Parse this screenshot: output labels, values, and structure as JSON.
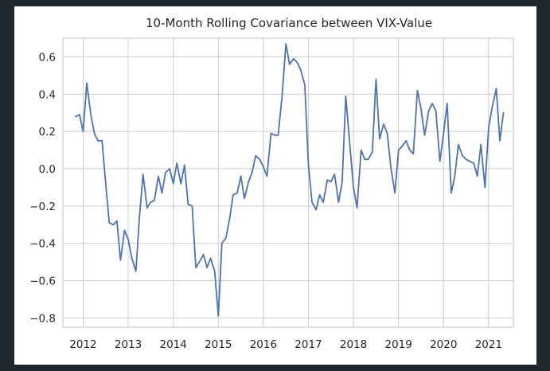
{
  "chart_data": {
    "type": "line",
    "title": "10-Month Rolling Covariance between VIX-Value",
    "xlabel": "",
    "ylabel": "",
    "xlim": [
      2011.55,
      2021.55
    ],
    "ylim": [
      -0.85,
      0.7
    ],
    "grid": true,
    "legend": "none",
    "x_ticks": [
      2012,
      2013,
      2014,
      2015,
      2016,
      2017,
      2018,
      2019,
      2020,
      2021
    ],
    "x_tick_labels": [
      "2012",
      "2013",
      "2014",
      "2015",
      "2016",
      "2017",
      "2018",
      "2019",
      "2020",
      "2021"
    ],
    "y_ticks": [
      0.6,
      0.4,
      0.2,
      0.0,
      -0.2,
      -0.4,
      -0.6,
      -0.8
    ],
    "y_tick_labels": [
      "0.6",
      "0.4",
      "0.2",
      "0.0",
      "−0.2",
      "−0.4",
      "−0.6",
      "−0.8"
    ],
    "colors": {
      "line": "#4c72b0",
      "grid": "#cccccc",
      "background": "#ffffff",
      "page": "#1f2731"
    },
    "series": [
      {
        "x": [
          2011.83,
          2011.92,
          2012.0,
          2012.08,
          2012.17,
          2012.25,
          2012.33,
          2012.42,
          2012.5,
          2012.58,
          2012.67,
          2012.75,
          2012.83,
          2012.92,
          2013.0,
          2013.08,
          2013.17,
          2013.25,
          2013.33,
          2013.42,
          2013.5,
          2013.58,
          2013.67,
          2013.75,
          2013.83,
          2013.92,
          2014.0,
          2014.08,
          2014.17,
          2014.25,
          2014.33,
          2014.42,
          2014.5,
          2014.58,
          2014.67,
          2014.75,
          2014.83,
          2014.92,
          2015.0,
          2015.08,
          2015.17,
          2015.25,
          2015.33,
          2015.42,
          2015.5,
          2015.58,
          2015.67,
          2015.75,
          2015.83,
          2015.92,
          2016.0,
          2016.08,
          2016.17,
          2016.25,
          2016.33,
          2016.42,
          2016.5,
          2016.58,
          2016.67,
          2016.75,
          2016.83,
          2016.92,
          2017.0,
          2017.08,
          2017.17,
          2017.25,
          2017.33,
          2017.42,
          2017.5,
          2017.58,
          2017.67,
          2017.75,
          2017.83,
          2017.92,
          2018.0,
          2018.08,
          2018.17,
          2018.25,
          2018.33,
          2018.42,
          2018.5,
          2018.58,
          2018.67,
          2018.75,
          2018.83,
          2018.92,
          2019.0,
          2019.08,
          2019.17,
          2019.25,
          2019.33,
          2019.42,
          2019.5,
          2019.58,
          2019.67,
          2019.75,
          2019.83,
          2019.92,
          2020.0,
          2020.08,
          2020.17,
          2020.25,
          2020.33,
          2020.42,
          2020.5,
          2020.58,
          2020.67,
          2020.75,
          2020.83,
          2020.92,
          2021.0,
          2021.08,
          2021.17,
          2021.25,
          2021.33
        ],
        "y": [
          0.28,
          0.29,
          0.2,
          0.46,
          0.29,
          0.19,
          0.15,
          0.15,
          -0.08,
          -0.29,
          -0.3,
          -0.28,
          -0.49,
          -0.33,
          -0.38,
          -0.48,
          -0.55,
          -0.26,
          -0.03,
          -0.21,
          -0.18,
          -0.17,
          -0.04,
          -0.13,
          -0.02,
          0.0,
          -0.08,
          0.03,
          -0.08,
          0.02,
          -0.19,
          -0.2,
          -0.53,
          -0.5,
          -0.46,
          -0.53,
          -0.48,
          -0.55,
          -0.79,
          -0.4,
          -0.37,
          -0.27,
          -0.14,
          -0.13,
          -0.04,
          -0.16,
          -0.07,
          -0.02,
          0.07,
          0.05,
          0.01,
          -0.04,
          0.19,
          0.18,
          0.18,
          0.4,
          0.67,
          0.56,
          0.59,
          0.57,
          0.53,
          0.45,
          0.02,
          -0.18,
          -0.22,
          -0.14,
          -0.18,
          -0.06,
          -0.07,
          -0.03,
          -0.18,
          -0.07,
          0.39,
          0.13,
          -0.1,
          -0.21,
          0.1,
          0.05,
          0.05,
          0.09,
          0.48,
          0.16,
          0.24,
          0.19,
          0.01,
          -0.13,
          0.1,
          0.12,
          0.15,
          0.1,
          0.08,
          0.42,
          0.32,
          0.18,
          0.31,
          0.35,
          0.31,
          0.04,
          0.19,
          0.35,
          -0.13,
          -0.04,
          0.13,
          0.07,
          0.05,
          0.04,
          0.03,
          -0.04,
          0.13,
          -0.1,
          0.22,
          0.33,
          0.43,
          0.15,
          0.3
        ]
      }
    ]
  }
}
